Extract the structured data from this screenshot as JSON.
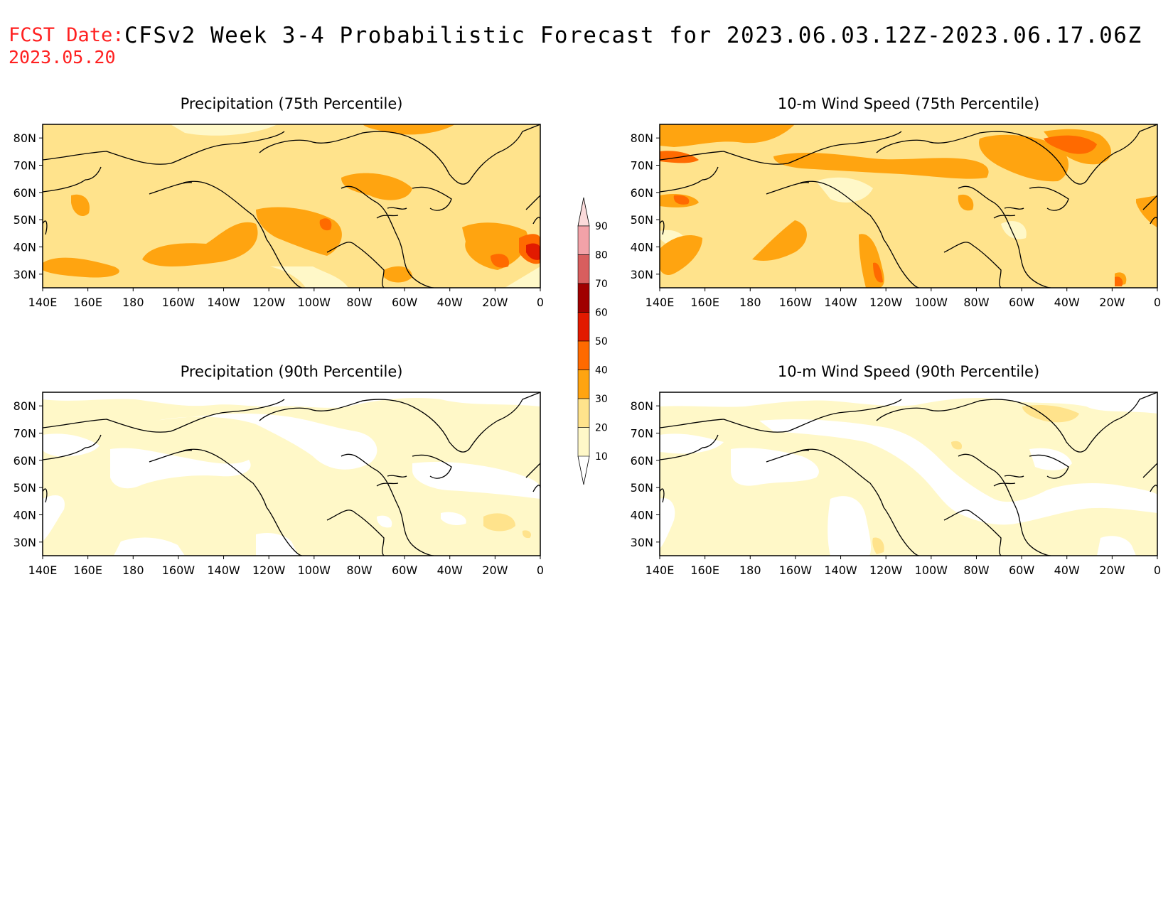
{
  "header": {
    "fcst_label": "FCST Date:",
    "fcst_date": "2023.05.20",
    "title": "CFSv2 Week 3-4 Probabilistic Forecast for 2023.06.03.12Z-2023.06.17.06Z"
  },
  "axes": {
    "lon_ticks": [
      "140E",
      "160E",
      "180",
      "160W",
      "140W",
      "120W",
      "100W",
      "80W",
      "60W",
      "40W",
      "20W",
      "0"
    ],
    "lat_ticks": [
      "80N",
      "70N",
      "60N",
      "50N",
      "40N",
      "30N"
    ]
  },
  "panels": [
    {
      "id": "precip-75",
      "title": "Precipitation (75th Percentile)",
      "base_level": 20
    },
    {
      "id": "wind-75",
      "title": "10-m Wind Speed (75th Percentile)",
      "base_level": 20
    },
    {
      "id": "precip-90",
      "title": "Precipitation (90th Percentile)",
      "base_level": 10
    },
    {
      "id": "wind-90",
      "title": "10-m Wind Speed (90th Percentile)",
      "base_level": 10
    }
  ],
  "colorbar": {
    "labels": [
      "90",
      "80",
      "70",
      "60",
      "50",
      "40",
      "30",
      "20",
      "10"
    ],
    "colors": {
      "10": "#fff8c8",
      "20": "#ffe38c",
      "30": "#ffa410",
      "40": "#ff6a00",
      "50": "#e21a00",
      "60": "#a00000",
      "70": "#d85e5e",
      "80": "#f2a2a8",
      "90": "#fbdada"
    }
  }
}
